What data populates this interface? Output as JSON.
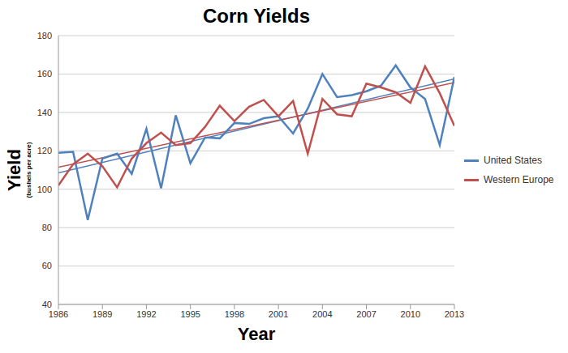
{
  "chart_data": {
    "type": "line",
    "title": "Corn Yields",
    "x_label": "Year",
    "y_label": "Yield",
    "y_label_note": "(bushels per acre)",
    "x": [
      1986,
      1987,
      1988,
      1989,
      1990,
      1991,
      1992,
      1993,
      1994,
      1995,
      1996,
      1997,
      1998,
      1999,
      2000,
      2001,
      2002,
      2003,
      2004,
      2005,
      2006,
      2007,
      2008,
      2009,
      2010,
      2011,
      2012,
      2013
    ],
    "series": [
      {
        "name": "United States",
        "color": "#4f81bd",
        "values": [
          119,
          119.5,
          84,
          116,
          118.5,
          108,
          131.5,
          100.5,
          138.5,
          113.5,
          127,
          126.5,
          134.5,
          134,
          137,
          138,
          129,
          142,
          160,
          148,
          149,
          151,
          154,
          164.5,
          153,
          147,
          123,
          158.5
        ],
        "trend": [
          108.5,
          157.5
        ]
      },
      {
        "name": "Western Europe",
        "color": "#c0504d",
        "values": [
          102,
          113,
          118.5,
          112,
          101,
          116,
          124,
          129.5,
          123,
          124,
          132.5,
          143.5,
          135.5,
          143,
          146.5,
          138,
          146,
          118.5,
          147,
          139,
          138,
          155,
          153,
          150.5,
          145,
          164,
          150,
          133
        ],
        "trend": [
          111.5,
          155.5
        ]
      }
    ],
    "xlim": [
      1986,
      2013
    ],
    "xticks": [
      1986,
      1989,
      1992,
      1995,
      1998,
      2001,
      2004,
      2007,
      2010,
      2013
    ],
    "ylim": [
      40,
      180
    ],
    "yticks": [
      40,
      60,
      80,
      100,
      120,
      140,
      160,
      180
    ],
    "grid": true,
    "legend": "right"
  }
}
